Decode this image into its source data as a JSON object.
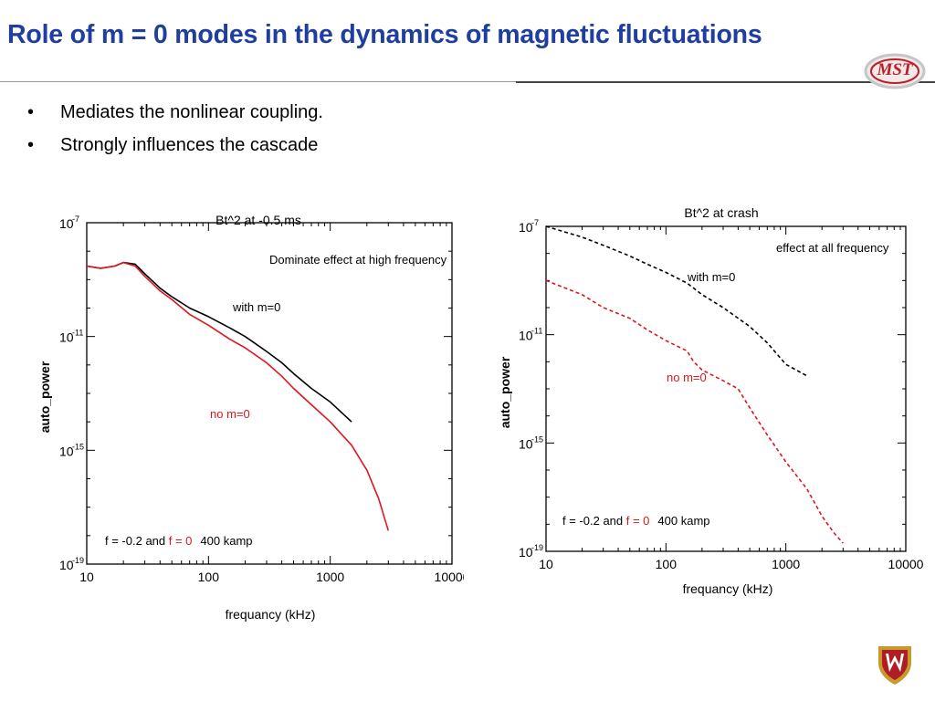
{
  "slide": {
    "title": "Role of m = 0 modes in the dynamics of magnetic fluctuations",
    "logo_text": "MST",
    "bullets": [
      "Mediates the nonlinear coupling.",
      "Strongly influences the cascade"
    ],
    "bullet_glyph": "•"
  },
  "colors": {
    "title": "#1f3fa0",
    "with_m0": "#000000",
    "no_m0": "#e0141e"
  },
  "chart_data": [
    {
      "type": "line",
      "title": "Bt^2 at -0.5 ms",
      "xlabel": "frequancy (kHz)",
      "ylabel": "auto_power",
      "xscale": "log",
      "yscale": "log",
      "xlim": [
        10,
        10000
      ],
      "ylim": [
        1e-19,
        1e-07
      ],
      "x_ticks": [
        "10",
        "100",
        "1000",
        "10000"
      ],
      "y_ticks": [
        "10",
        "10",
        "10",
        "10"
      ],
      "y_tick_exponents": [
        "-7",
        "-11",
        "-15",
        "-19"
      ],
      "line_style": "solid",
      "annotations": {
        "main": "Dominate effect at  high frequency",
        "with": "with m=0",
        "no": "no m=0",
        "footer_prefix": "f = -0.2 and ",
        "footer_red": "f = 0",
        "footer_suffix": "400 kamp"
      },
      "series": [
        {
          "name": "with m=0",
          "color": "#000000",
          "x": [
            10,
            13,
            17,
            20,
            25,
            30,
            40,
            50,
            70,
            100,
            150,
            200,
            300,
            400,
            500,
            700,
            1000,
            1500
          ],
          "y": [
            3e-09,
            2.5e-09,
            3e-09,
            4e-09,
            3.5e-09,
            1.6e-09,
            5e-10,
            2.5e-10,
            1e-10,
            5e-11,
            2e-11,
            1e-11,
            3e-12,
            1.2e-12,
            5e-13,
            1.5e-13,
            5e-14,
            1e-14
          ]
        },
        {
          "name": "no m=0",
          "color": "#e0141e",
          "x": [
            10,
            13,
            17,
            20,
            25,
            30,
            40,
            50,
            70,
            100,
            150,
            200,
            300,
            400,
            500,
            700,
            1000,
            1500,
            2000,
            2500,
            3000
          ],
          "y": [
            3e-09,
            2.5e-09,
            3e-09,
            4e-09,
            3e-09,
            1.3e-09,
            4e-10,
            2e-10,
            6e-11,
            2.5e-11,
            8e-12,
            4e-12,
            1.2e-12,
            4e-13,
            1.5e-13,
            4e-14,
            1e-14,
            1.5e-15,
            2e-16,
            2e-17,
            1.5e-18
          ]
        }
      ]
    },
    {
      "type": "line",
      "title": "Bt^2 at crash",
      "xlabel": "frequancy (kHz)",
      "ylabel": "auto_power",
      "xscale": "log",
      "yscale": "log",
      "xlim": [
        10,
        10000
      ],
      "ylim": [
        1e-19,
        1e-07
      ],
      "x_ticks": [
        "10",
        "100",
        "1000",
        "10000"
      ],
      "y_ticks": [
        "10",
        "10",
        "10",
        "10"
      ],
      "y_tick_exponents": [
        "-7",
        "-11",
        "-15",
        "-19"
      ],
      "line_style": "dashed",
      "annotations": {
        "main": "effect at all frequency",
        "with": "with m=0",
        "no": "no m=0",
        "footer_prefix": "f = -0.2 and ",
        "footer_red": "f = 0",
        "footer_suffix": "400 kamp"
      },
      "series": [
        {
          "name": "with m=0",
          "color": "#000000",
          "x": [
            10,
            20,
            30,
            50,
            70,
            100,
            150,
            200,
            300,
            500,
            700,
            1000,
            1500
          ],
          "y": [
            1e-07,
            4e-08,
            2e-08,
            8e-09,
            4e-09,
            2e-09,
            8e-10,
            3e-10,
            1e-10,
            2e-11,
            5e-12,
            8e-13,
            3e-13
          ]
        },
        {
          "name": "no m=0",
          "color": "#e0141e",
          "x": [
            10,
            20,
            30,
            50,
            70,
            100,
            150,
            170,
            200,
            300,
            400,
            500,
            700,
            1000,
            1500,
            2000,
            2500,
            3000
          ],
          "y": [
            1e-09,
            3e-10,
            1e-10,
            4e-11,
            1.5e-11,
            6e-12,
            2.5e-12,
            1e-12,
            5e-13,
            2e-13,
            1e-13,
            2e-14,
            2e-15,
            2e-16,
            2e-17,
            2e-18,
            5e-19,
            2e-19
          ]
        }
      ]
    }
  ]
}
